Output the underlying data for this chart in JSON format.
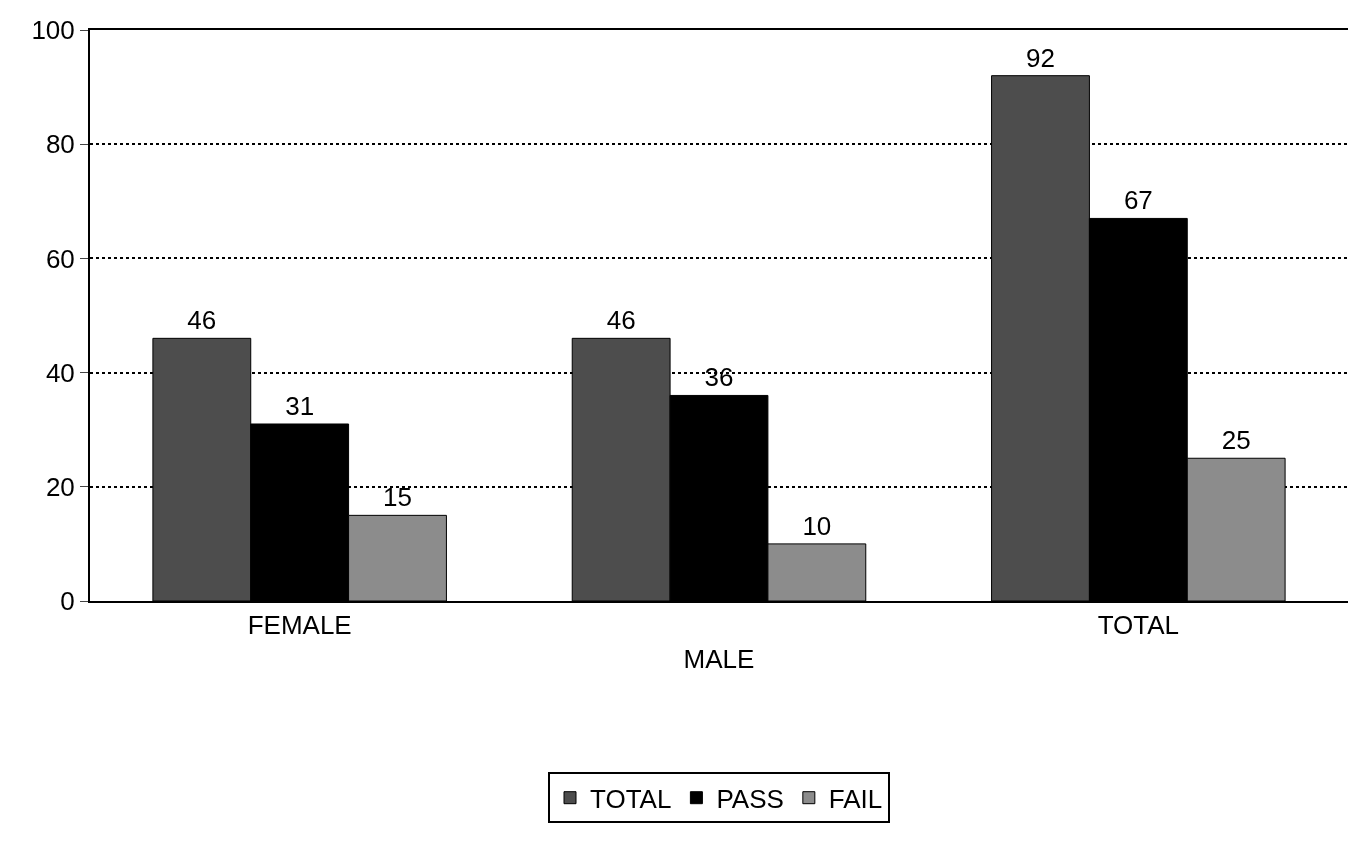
{
  "chart_data": {
    "type": "bar",
    "categories": [
      "FEMALE",
      "MALE",
      "TOTAL"
    ],
    "series": [
      {
        "name": "TOTAL",
        "color": "#4d4d4d",
        "values": [
          46,
          46,
          92
        ]
      },
      {
        "name": "PASS",
        "color": "#000000",
        "values": [
          31,
          36,
          67
        ]
      },
      {
        "name": "FAIL",
        "color": "#8c8c8c",
        "values": [
          15,
          10,
          25
        ]
      }
    ],
    "ylim": [
      0,
      100
    ],
    "yticks": [
      0,
      20,
      40,
      60,
      80,
      100
    ],
    "grid": "y",
    "legend": "bottom",
    "data_labels": true
  }
}
